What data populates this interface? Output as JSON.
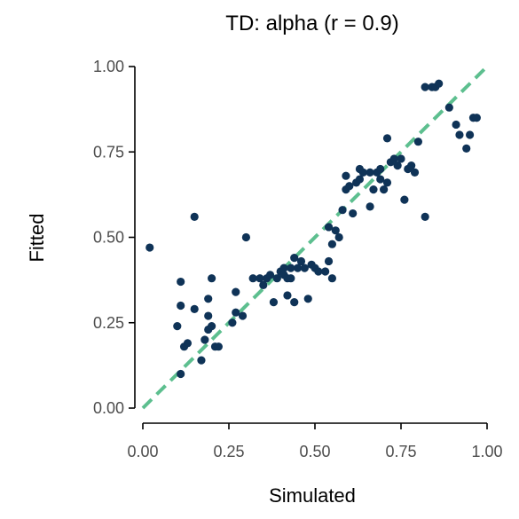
{
  "chart_data": {
    "type": "scatter",
    "title": "TD: alpha (r = 0.9)",
    "xlabel": "Simulated",
    "ylabel": "Fitted",
    "xlim": [
      0,
      1
    ],
    "ylim": [
      0,
      1
    ],
    "xticks": [
      "0.00",
      "0.25",
      "0.50",
      "0.75",
      "1.00"
    ],
    "yticks": [
      "0.00",
      "0.25",
      "0.50",
      "0.75",
      "1.00"
    ],
    "grid": false,
    "legend": "none",
    "reference_line": {
      "type": "identity",
      "style": "dashed",
      "color": "#5dbf8f"
    },
    "point_color": "#0f3357",
    "series": [
      {
        "points": [
          [
            0.02,
            0.47
          ],
          [
            0.15,
            0.56
          ],
          [
            0.11,
            0.37
          ],
          [
            0.11,
            0.3
          ],
          [
            0.1,
            0.24
          ],
          [
            0.11,
            0.1
          ],
          [
            0.12,
            0.18
          ],
          [
            0.13,
            0.19
          ],
          [
            0.15,
            0.29
          ],
          [
            0.17,
            0.14
          ],
          [
            0.18,
            0.2
          ],
          [
            0.19,
            0.27
          ],
          [
            0.19,
            0.23
          ],
          [
            0.19,
            0.32
          ],
          [
            0.2,
            0.38
          ],
          [
            0.2,
            0.24
          ],
          [
            0.21,
            0.18
          ],
          [
            0.22,
            0.18
          ],
          [
            0.26,
            0.25
          ],
          [
            0.27,
            0.34
          ],
          [
            0.27,
            0.28
          ],
          [
            0.29,
            0.27
          ],
          [
            0.3,
            0.5
          ],
          [
            0.32,
            0.38
          ],
          [
            0.34,
            0.38
          ],
          [
            0.35,
            0.36
          ],
          [
            0.36,
            0.38
          ],
          [
            0.37,
            0.39
          ],
          [
            0.38,
            0.31
          ],
          [
            0.39,
            0.38
          ],
          [
            0.4,
            0.4
          ],
          [
            0.41,
            0.41
          ],
          [
            0.41,
            0.39
          ],
          [
            0.42,
            0.38
          ],
          [
            0.42,
            0.33
          ],
          [
            0.43,
            0.41
          ],
          [
            0.43,
            0.38
          ],
          [
            0.44,
            0.31
          ],
          [
            0.44,
            0.44
          ],
          [
            0.45,
            0.41
          ],
          [
            0.46,
            0.43
          ],
          [
            0.47,
            0.41
          ],
          [
            0.48,
            0.32
          ],
          [
            0.49,
            0.42
          ],
          [
            0.5,
            0.41
          ],
          [
            0.51,
            0.4
          ],
          [
            0.53,
            0.4
          ],
          [
            0.54,
            0.43
          ],
          [
            0.54,
            0.53
          ],
          [
            0.55,
            0.48
          ],
          [
            0.55,
            0.38
          ],
          [
            0.56,
            0.52
          ],
          [
            0.57,
            0.5
          ],
          [
            0.58,
            0.58
          ],
          [
            0.59,
            0.64
          ],
          [
            0.59,
            0.68
          ],
          [
            0.6,
            0.65
          ],
          [
            0.61,
            0.57
          ],
          [
            0.62,
            0.66
          ],
          [
            0.63,
            0.67
          ],
          [
            0.63,
            0.7
          ],
          [
            0.64,
            0.69
          ],
          [
            0.66,
            0.69
          ],
          [
            0.66,
            0.59
          ],
          [
            0.67,
            0.64
          ],
          [
            0.68,
            0.69
          ],
          [
            0.69,
            0.67
          ],
          [
            0.69,
            0.7
          ],
          [
            0.7,
            0.64
          ],
          [
            0.71,
            0.66
          ],
          [
            0.71,
            0.79
          ],
          [
            0.72,
            0.72
          ],
          [
            0.73,
            0.73
          ],
          [
            0.74,
            0.71
          ],
          [
            0.75,
            0.73
          ],
          [
            0.76,
            0.61
          ],
          [
            0.77,
            0.7
          ],
          [
            0.78,
            0.71
          ],
          [
            0.79,
            0.69
          ],
          [
            0.8,
            0.78
          ],
          [
            0.82,
            0.56
          ],
          [
            0.82,
            0.94
          ],
          [
            0.84,
            0.94
          ],
          [
            0.85,
            0.94
          ],
          [
            0.86,
            0.95
          ],
          [
            0.89,
            0.88
          ],
          [
            0.91,
            0.83
          ],
          [
            0.92,
            0.8
          ],
          [
            0.94,
            0.76
          ],
          [
            0.95,
            0.8
          ],
          [
            0.96,
            0.85
          ],
          [
            0.97,
            0.85
          ]
        ]
      }
    ]
  }
}
